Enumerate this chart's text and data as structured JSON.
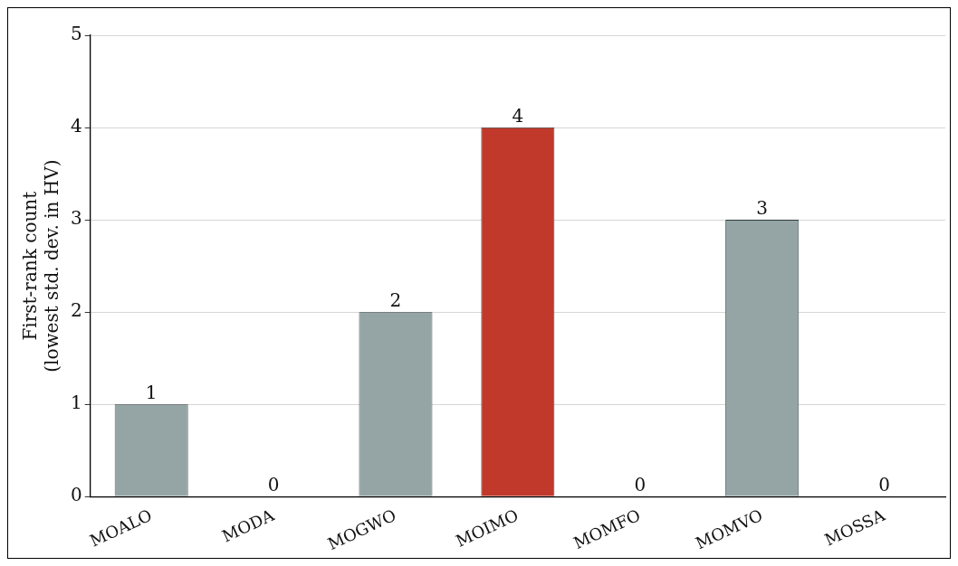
{
  "chart_data": {
    "type": "bar",
    "ylabel": "First-rank count\n(lowest std. dev. in HV)",
    "categories": [
      "MOALO",
      "MODA",
      "MOGWO",
      "MOIMO",
      "MOMFO",
      "MOMVO",
      "MOSSA"
    ],
    "values": [
      1,
      0,
      2,
      4,
      0,
      3,
      0
    ],
    "colors": [
      "#95a5a6",
      "#95a5a6",
      "#95a5a6",
      "#c0392b",
      "#95a5a6",
      "#95a5a6",
      "#95a5a6"
    ],
    "ylim": [
      0,
      5
    ],
    "yticks": [
      0,
      1,
      2,
      3,
      4,
      5
    ],
    "grid": "y",
    "data_labels": true,
    "legend": false
  }
}
